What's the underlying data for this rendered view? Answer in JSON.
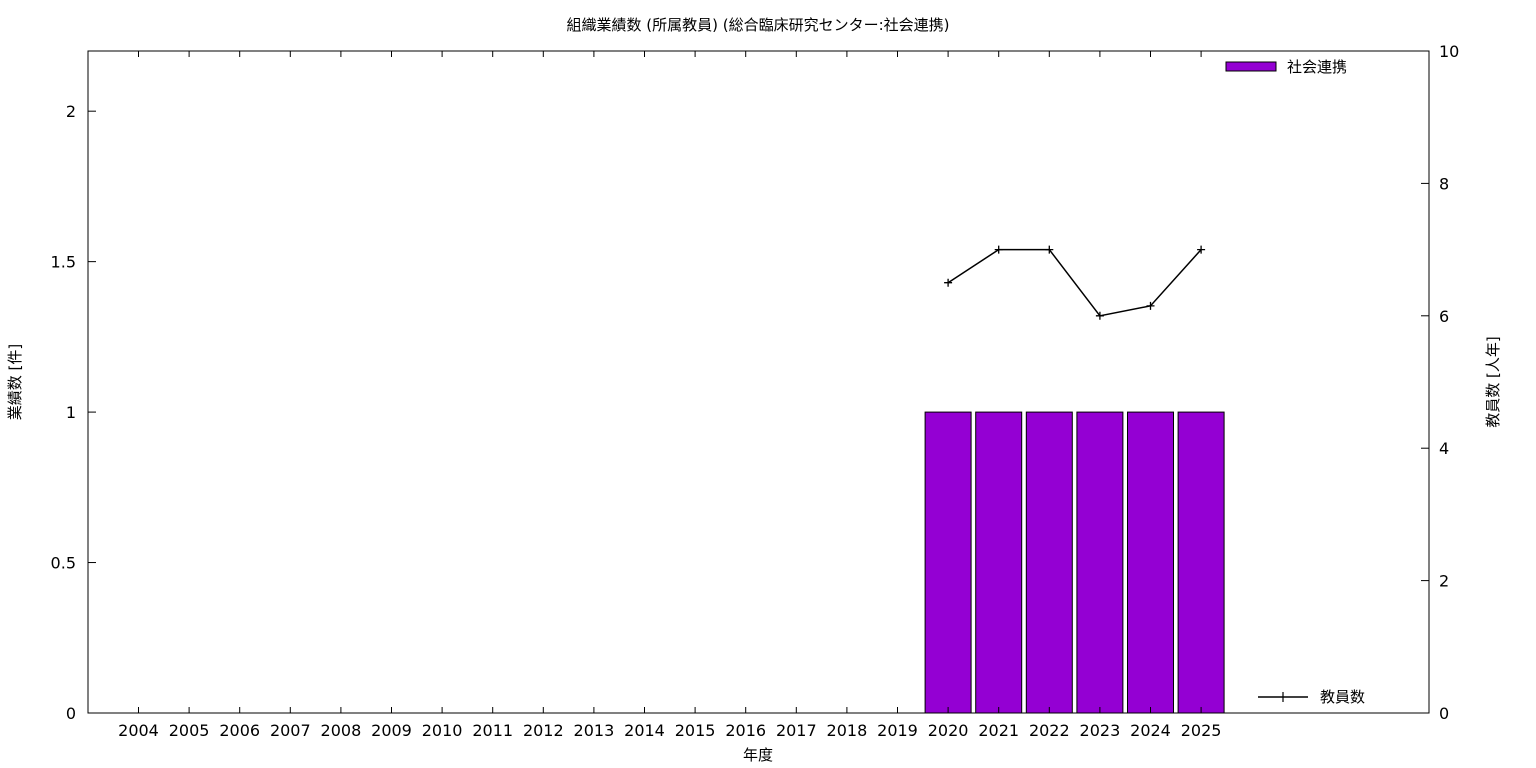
{
  "chart_data": {
    "type": "bar",
    "title": "組織業績数 (所属教員) (総合臨床研究センター:社会連携)",
    "xlabel": "年度",
    "ylabel": "業績数 [件]",
    "y2label": "教員数 [人年]",
    "categories": [
      "2004",
      "2005",
      "2006",
      "2007",
      "2008",
      "2009",
      "2010",
      "2011",
      "2012",
      "2013",
      "2014",
      "2015",
      "2016",
      "2017",
      "2018",
      "2019",
      "2020",
      "2021",
      "2022",
      "2023",
      "2024",
      "2025"
    ],
    "ylim": [
      0,
      2.2
    ],
    "yticks": [
      "0",
      "0.5",
      "1",
      "1.5",
      "2"
    ],
    "y2lim": [
      0,
      10
    ],
    "y2ticks": [
      "0",
      "2",
      "4",
      "6",
      "8",
      "10"
    ],
    "grid": false,
    "series": [
      {
        "name": "社会連携",
        "type": "bar",
        "axis": "left",
        "color": "#9400d3",
        "values": [
          0,
          0,
          0,
          0,
          0,
          0,
          0,
          0,
          0,
          0,
          0,
          0,
          0,
          0,
          0,
          0,
          1,
          1,
          1,
          1,
          1,
          1
        ]
      },
      {
        "name": "教員数",
        "type": "line",
        "axis": "right",
        "color": "#000000",
        "values": [
          null,
          null,
          null,
          null,
          null,
          null,
          null,
          null,
          null,
          null,
          null,
          null,
          null,
          null,
          null,
          null,
          6.5,
          7,
          7,
          6,
          6.15,
          7
        ]
      }
    ],
    "legend": [
      {
        "label": "社会連携",
        "placement": "top-right"
      },
      {
        "label": "教員数",
        "placement": "bottom-right"
      }
    ]
  }
}
